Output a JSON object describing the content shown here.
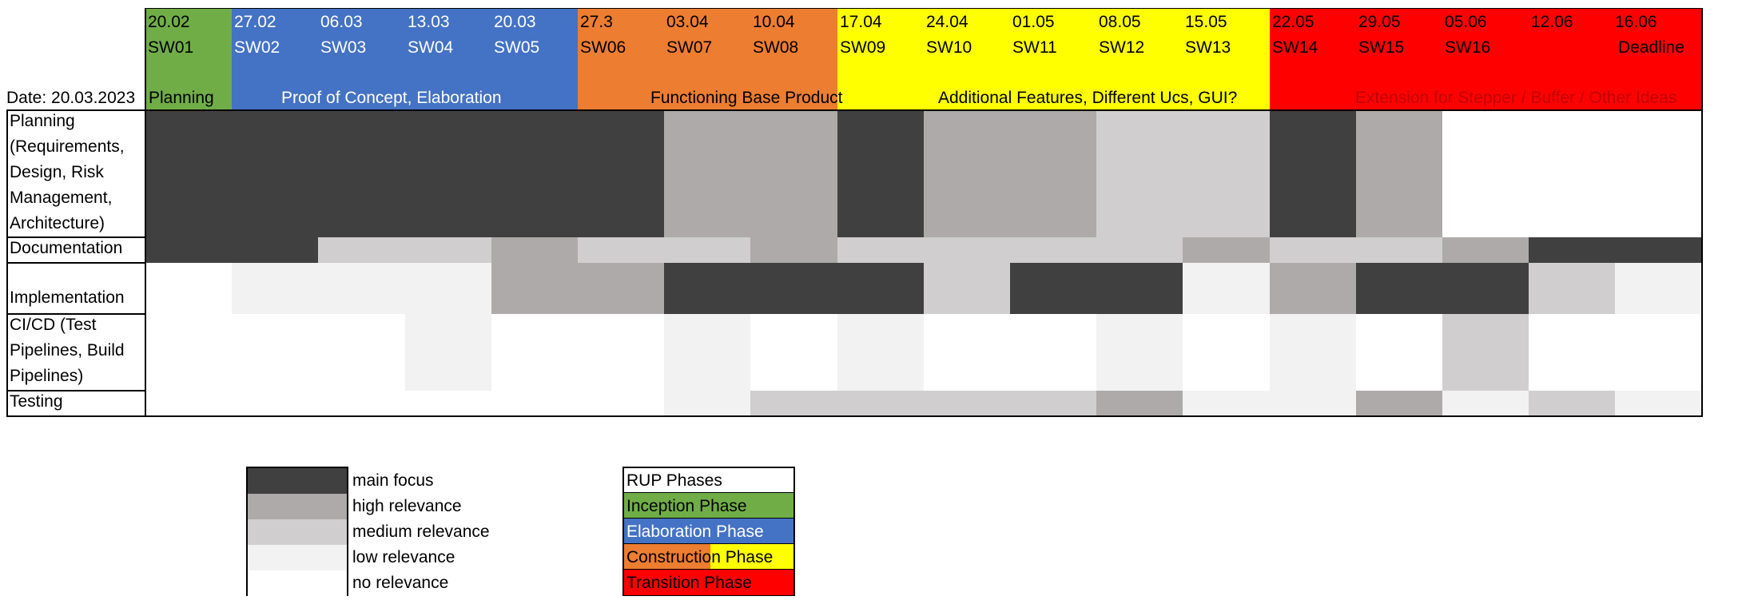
{
  "date_label": "Date: 20.03.2023",
  "weeks": [
    {
      "date": "20.02",
      "sw": "SW01",
      "phase": "inception"
    },
    {
      "date": "27.02",
      "sw": "SW02",
      "phase": "elaboration"
    },
    {
      "date": "06.03",
      "sw": "SW03",
      "phase": "elaboration"
    },
    {
      "date": "13.03",
      "sw": "SW04",
      "phase": "elaboration"
    },
    {
      "date": "20.03",
      "sw": "SW05",
      "phase": "elaboration"
    },
    {
      "date": "27.3",
      "sw": "SW06",
      "phase": "construction_a"
    },
    {
      "date": "03.04",
      "sw": "SW07",
      "phase": "construction_a"
    },
    {
      "date": "10.04",
      "sw": "SW08",
      "phase": "construction_a"
    },
    {
      "date": "17.04",
      "sw": "SW09",
      "phase": "construction_b"
    },
    {
      "date": "24.04",
      "sw": "SW10",
      "phase": "construction_b"
    },
    {
      "date": "01.05",
      "sw": "SW11",
      "phase": "construction_b"
    },
    {
      "date": "08.05",
      "sw": "SW12",
      "phase": "construction_b"
    },
    {
      "date": "15.05",
      "sw": "SW13",
      "phase": "construction_b"
    },
    {
      "date": "22.05",
      "sw": "SW14",
      "phase": "transition"
    },
    {
      "date": "29.05",
      "sw": "SW15",
      "phase": "transition"
    },
    {
      "date": "05.06",
      "sw": "SW16",
      "phase": "transition"
    },
    {
      "date": "12.06",
      "sw": "",
      "phase": "transition"
    },
    {
      "date": "16.06",
      "sw": "Deadline",
      "phase": "transition"
    }
  ],
  "phase_labels": {
    "planning": "Planning",
    "proof_of_concept": "Proof of Concept, Elaboration",
    "functioning_base": "Functioning Base Product",
    "additional_features": "Additional Features, Different Ucs, GUI?",
    "extension": "Extension for Stepper / Buffer / Other Ideas"
  },
  "colors": {
    "inception": "#70ad47",
    "elaboration": "#4472c4",
    "construction_a": "#ed7d31",
    "construction_b": "#ffff00",
    "transition": "#ff0000",
    "main": "#404040",
    "high": "#aeaaaa",
    "medium": "#d0cece",
    "low": "#f2f2f2",
    "none": "#ffffff"
  },
  "rows": [
    {
      "label_lines": [
        "Planning",
        "(Requirements,",
        "Design, Risk",
        "Management,",
        "Architecture)"
      ],
      "levels": [
        "main",
        "main",
        "main",
        "main",
        "main",
        "main",
        "high",
        "high",
        "main",
        "high",
        "high",
        "medium",
        "medium",
        "main",
        "high",
        "none",
        "none",
        "none"
      ]
    },
    {
      "label_lines": [
        "Documentation"
      ],
      "levels": [
        "main",
        "main",
        "medium",
        "medium",
        "high",
        "medium",
        "medium",
        "high",
        "medium",
        "medium",
        "medium",
        "medium",
        "high",
        "medium",
        "medium",
        "high",
        "main",
        "main"
      ]
    },
    {
      "label_lines": [
        "Implementation"
      ],
      "levels": [
        "none",
        "low",
        "low",
        "low",
        "high",
        "high",
        "main",
        "main",
        "main",
        "medium",
        "main",
        "main",
        "low",
        "high",
        "main",
        "main",
        "medium",
        "low"
      ]
    },
    {
      "label_lines": [
        "CI/CD (Test",
        "Pipelines, Build",
        "Pipelines)"
      ],
      "levels": [
        "none",
        "none",
        "none",
        "low",
        "none",
        "none",
        "low",
        "none",
        "low",
        "none",
        "none",
        "low",
        "none",
        "low",
        "none",
        "medium",
        "none",
        "none"
      ]
    },
    {
      "label_lines": [
        "Testing"
      ],
      "levels": [
        "none",
        "none",
        "none",
        "none",
        "none",
        "none",
        "low",
        "medium",
        "medium",
        "medium",
        "medium",
        "high",
        "low",
        "low",
        "high",
        "low",
        "medium",
        "low"
      ]
    }
  ],
  "legend": {
    "relevance": [
      {
        "level": "main",
        "label": "main focus"
      },
      {
        "level": "high",
        "label": "high relevance"
      },
      {
        "level": "medium",
        "label": "medium relevance"
      },
      {
        "level": "low",
        "label": "low relevance"
      },
      {
        "level": "none",
        "label": "no relevance"
      }
    ],
    "rup_title": "RUP Phases",
    "rup_phases": [
      {
        "key": "inception",
        "label": "Inception Phase"
      },
      {
        "key": "elaboration",
        "label": "Elaboration Phase"
      },
      {
        "key": "construction",
        "label": "Construction Phase"
      },
      {
        "key": "transition",
        "label": "Transition Phase"
      }
    ]
  }
}
